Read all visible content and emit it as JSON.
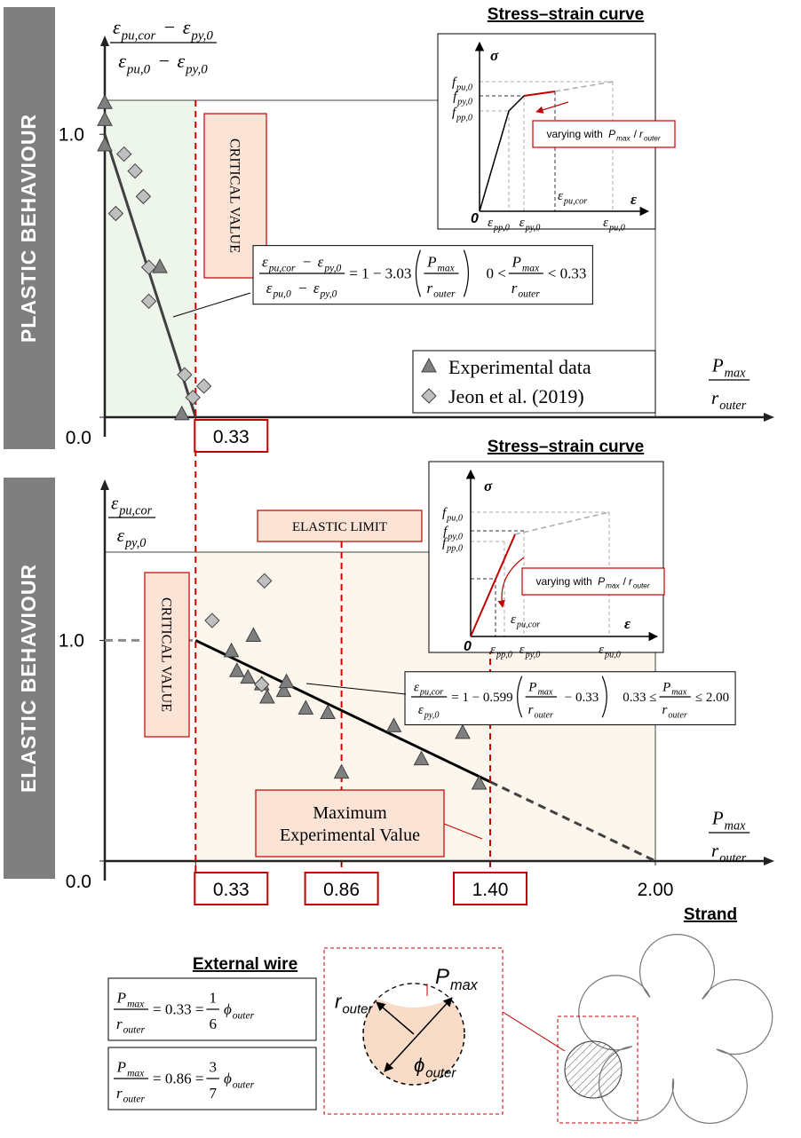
{
  "chart_data": [
    {
      "type": "scatter",
      "ylabel": {
        "num": [
          {
            "t": "ε",
            "sub": "pu,cor"
          },
          " − ",
          {
            "t": "ε",
            "sub": "py,0"
          }
        ],
        "den": [
          {
            "t": "ε",
            "sub": "pu,0"
          },
          " − ",
          {
            "t": "ε",
            "sub": "py,0"
          }
        ]
      },
      "xlabel": {
        "num": [
          {
            "t": "P",
            "sub": "max"
          }
        ],
        "den": [
          {
            "t": "r",
            "sub": "outer"
          }
        ]
      },
      "xlim": [
        0,
        2
      ],
      "ylim": [
        0,
        1.12
      ],
      "xticks": [
        0.33
      ],
      "yticks": [
        {
          "value": 0,
          "label": "0.0"
        },
        {
          "value": 1,
          "label": "1.0"
        }
      ],
      "shade": [
        0,
        0.33
      ],
      "shade_color": "#eef5ea",
      "series": [
        {
          "name": "Experimental data",
          "marker": "triangle",
          "color": "#7f7f7f",
          "x": [
            0,
            0,
            0,
            0.28,
            0.2
          ],
          "values": [
            1.11,
            1.05,
            0.96,
            0.01,
            0.53
          ]
        },
        {
          "name": "Jeon et al. (2019)",
          "marker": "diamond",
          "color": "#bfbfbf",
          "x": [
            0.07,
            0.11,
            0.14,
            0.04,
            0.16,
            0.16,
            0.29,
            0.36,
            0.32
          ],
          "values": [
            0.93,
            0.87,
            0.78,
            0.72,
            0.53,
            0.41,
            0.15,
            0.11,
            0.07
          ]
        }
      ],
      "fit_lines": [
        {
          "x": [
            0,
            0.33
          ],
          "values": [
            1,
            0
          ],
          "color": "#404040",
          "dash": false
        }
      ],
      "markers": [
        {
          "x": 0.33,
          "label": [
            "CRITICAL VALUE"
          ]
        }
      ],
      "equation": [
        [
          {
            "num": [
              {
                "t": "ε",
                "sub": "pu,cor"
              },
              " − ",
              {
                "t": "ε",
                "sub": "py,0"
              }
            ],
            "den": [
              {
                "t": "ε",
                "sub": "pu,0"
              },
              " − ",
              {
                "t": "ε",
                "sub": "py,0"
              }
            ]
          },
          "= 1 − 3.03",
          {
            "paren": [
              {
                "num": [
                  {
                    "t": "P",
                    "sub": "max"
                  }
                ],
                "den": [
                  {
                    "t": "r",
                    "sub": "outer"
                  }
                ]
              }
            ]
          }
        ],
        [
          "0 <",
          {
            "num": [
              {
                "t": "P",
                "sub": "max"
              }
            ],
            "den": [
              {
                "t": "r",
                "sub": "outer"
              }
            ]
          },
          "< 0.33"
        ]
      ],
      "legend": "lower right",
      "inset": {
        "title": "Stress–strain curve",
        "y_symbol": "σ",
        "x_symbol": "ε",
        "origin": "0",
        "y_labels": [
          {
            "t": "f",
            "sub": "pu,0"
          },
          {
            "t": "f",
            "sub": "py,0"
          },
          {
            "t": "f",
            "sub": "pp,0"
          }
        ],
        "x_labels": [
          {
            "t": "ε",
            "sub": "pp,0"
          },
          {
            "t": "ε",
            "sub": "py,0"
          },
          {
            "t": "ε",
            "sub": "pu,0"
          }
        ],
        "cor_label": {
          "t": "ε",
          "sub": "pu,cor"
        },
        "note": [
          "varying with ",
          {
            "t": "P",
            "sub": "max"
          },
          "/",
          {
            "t": "r",
            "sub": "outer"
          }
        ]
      }
    },
    {
      "type": "scatter",
      "ylabel": {
        "num": [
          {
            "t": "ε",
            "sub": "pu,cor"
          }
        ],
        "den": [
          {
            "t": "ε",
            "sub": "py,0"
          }
        ]
      },
      "xlabel": {
        "num": [
          {
            "t": "P",
            "sub": "max"
          }
        ],
        "den": [
          {
            "t": "r",
            "sub": "outer"
          }
        ]
      },
      "xlim": [
        0,
        2
      ],
      "ylim": [
        0,
        1.4
      ],
      "xticks": [
        0.33,
        0.86,
        {
          "value": 1.4,
          "label": "1.40"
        },
        {
          "value": 2,
          "label": "2.00"
        }
      ],
      "yticks": [
        {
          "value": 0,
          "label": "0.0"
        },
        {
          "value": 1,
          "label": "1.0"
        }
      ],
      "shade": [
        0.33,
        2
      ],
      "shade_color": "#fdf6ec",
      "series": [
        {
          "marker": "triangle",
          "color": "#7f7f7f",
          "x": [
            0.46,
            0.48,
            0.52,
            0.54,
            0.57,
            0.59,
            0.65,
            0.66,
            0.73,
            0.81,
            0.86,
            1.05,
            1.15,
            1.3,
            1.36
          ],
          "values": [
            0.95,
            0.86,
            0.83,
            1.02,
            0.8,
            0.74,
            0.77,
            0.81,
            0.69,
            0.67,
            0.4,
            0.61,
            0.46,
            0.58,
            0.35
          ]
        },
        {
          "marker": "diamond",
          "color": "#bfbfbf",
          "x": [
            0.39,
            0.58,
            0.57
          ],
          "values": [
            1.09,
            1.27,
            0.8
          ]
        }
      ],
      "fit_lines": [
        {
          "x": [
            0,
            0.33
          ],
          "values": [
            1,
            1
          ],
          "color": "#8c8c8c",
          "dash": true
        },
        {
          "x": [
            0.33,
            1.4
          ],
          "values": [
            1,
            0.359
          ],
          "color": "#000000",
          "dash": false
        },
        {
          "x": [
            1.4,
            2
          ],
          "values": [
            0.359,
            0
          ],
          "color": "#404040",
          "dash": true
        }
      ],
      "markers": [
        {
          "x": 0.33,
          "label": [
            "CRITICAL VALUE"
          ]
        },
        {
          "x": 0.86,
          "label": [
            "ELASTIC LIMIT"
          ]
        },
        {
          "x": 1.4,
          "label": [
            "Maximum",
            "Experimental Value"
          ]
        }
      ],
      "equation": [
        [
          {
            "num": [
              {
                "t": "ε",
                "sub": "pu,cor"
              }
            ],
            "den": [
              {
                "t": "ε",
                "sub": "py,0"
              }
            ]
          },
          "= 1 − 0.599",
          {
            "paren": [
              {
                "num": [
                  {
                    "t": "P",
                    "sub": "max"
                  }
                ],
                "den": [
                  {
                    "t": "r",
                    "sub": "outer"
                  }
                ]
              },
              " − 0.33"
            ]
          }
        ],
        [
          "0.33 ≤",
          {
            "num": [
              {
                "t": "P",
                "sub": "max"
              }
            ],
            "den": [
              {
                "t": "r",
                "sub": "outer"
              }
            ]
          },
          "≤ 2.00"
        ]
      ],
      "inset": {
        "title": "Stress–strain curve",
        "y_symbol": "σ",
        "x_symbol": "ε",
        "origin": "0",
        "y_labels": [
          {
            "t": "f",
            "sub": "pu,0"
          },
          {
            "t": "f",
            "sub": "py,0"
          },
          {
            "t": "f",
            "sub": "pp,0"
          }
        ],
        "x_labels": [
          {
            "t": "ε",
            "sub": "pp,0"
          },
          {
            "t": "ε",
            "sub": "py,0"
          },
          {
            "t": "ε",
            "sub": "pu,0"
          }
        ],
        "cor_label": {
          "t": "ε",
          "sub": "pu,cor"
        },
        "note": [
          "varying with ",
          {
            "t": "P",
            "sub": "max"
          },
          "/",
          {
            "t": "r",
            "sub": "outer"
          }
        ]
      }
    }
  ],
  "side_labels": [
    "PLASTIC BEHAVIOUR",
    "ELASTIC BEHAVIOUR"
  ],
  "external_wire": {
    "title": "External wire",
    "equations": [
      [
        {
          "num": [
            {
              "t": "P",
              "sub": "max"
            }
          ],
          "den": [
            {
              "t": "r",
              "sub": "outer"
            }
          ]
        },
        "= 0.33 =",
        {
          "num": [
            "1"
          ],
          "den": [
            "6"
          ]
        },
        {
          "t": "ϕ",
          "sub": "outer"
        }
      ],
      [
        {
          "num": [
            {
              "t": "P",
              "sub": "max"
            }
          ],
          "den": [
            {
              "t": "r",
              "sub": "outer"
            }
          ]
        },
        "= 0.86 =",
        {
          "num": [
            "3"
          ],
          "den": [
            "7"
          ]
        },
        {
          "t": "ϕ",
          "sub": "outer"
        }
      ]
    ]
  },
  "wire_detail": {
    "p_label": {
      "t": "P",
      "sub": "max"
    },
    "r_label": {
      "t": "r",
      "sub": "outer"
    },
    "phi_label": {
      "t": "ϕ",
      "sub": "outer"
    }
  },
  "strand": {
    "title": "Strand"
  }
}
